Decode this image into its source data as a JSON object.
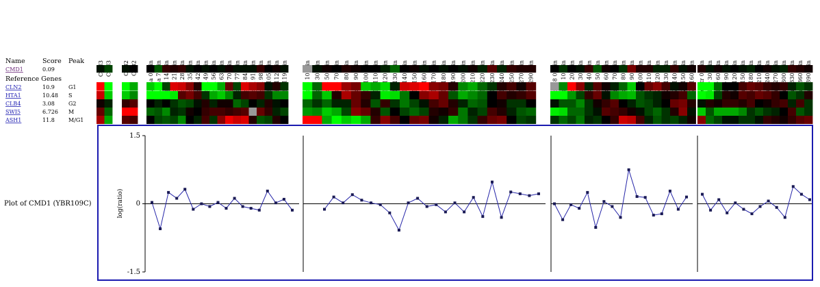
{
  "colors": {
    "up": "#ff0000",
    "down": "#00ff00",
    "missing": "#999999",
    "plot_border": "#1a1ab0",
    "series_line": "#2424a8",
    "marker": "#1a1a55",
    "query_link": "#6b2a7a",
    "ref_link": "#1a1ab0"
  },
  "table": {
    "headers": {
      "name": "Name",
      "score": "Score",
      "peak": "Peak"
    },
    "query": {
      "name": "CMD1",
      "score": "0.09",
      "peak": ""
    },
    "reference_label": "Reference Genes",
    "references": [
      {
        "name": "CLN2",
        "score": "10.9",
        "peak": "G1"
      },
      {
        "name": "HTA1",
        "score": "10.48",
        "peak": "S"
      },
      {
        "name": "CLB4",
        "score": "3.08",
        "peak": "G2"
      },
      {
        "name": "SWI5",
        "score": "6.726",
        "peak": "M"
      },
      {
        "name": "ASH1",
        "score": "11.8",
        "peak": "M/G1"
      }
    ]
  },
  "column_groups": [
    {
      "id": "cln3",
      "labels": [
        "CLN3",
        "CLN3"
      ]
    },
    {
      "id": "clb2",
      "labels": [
        "CLB2",
        "CLB2"
      ]
    },
    {
      "id": "alpha",
      "labels": [
        "Alpha 0 min",
        "Alpha 7 min",
        "Alpha 14 min",
        "Alpha 21 min",
        "Alpha 28 min",
        "Alpha 35 min",
        "Alpha 42 min",
        "Alpha 49 min",
        "Alpha 56 min",
        "Alpha 63 min",
        "Alpha 70 min",
        "Alpha 77 min",
        "Alpha 84 min",
        "Alpha 91 min",
        "Alpha 98 min",
        "Alpha 105 min",
        "Alpha 112 min",
        "Alpha 119 min"
      ]
    },
    {
      "id": "cdc15",
      "labels": [
        "cdc15 10 min",
        "cdc15 30 min",
        "cdc15 50 min",
        "cdc15 70 min",
        "cdc15 80 min",
        "cdc15 90 min",
        "cdc15 100 min",
        "cdc15 110 min",
        "cdc15 120 min",
        "cdc15 130 min",
        "cdc15 140 min",
        "cdc15 150 min",
        "cdc15 160 min",
        "cdc15 170 min",
        "cdc15 180 min",
        "cdc15 190 min",
        "cdc15 200 min",
        "cdc15 210 min",
        "cdc15 220 min",
        "cdc15 230 min",
        "cdc15 240 min",
        "cdc15 250 min",
        "cdc15 270 min",
        "cdc15 290 min"
      ]
    },
    {
      "id": "cdc28",
      "labels": [
        "cdc28 0 min",
        "cdc28 10 min",
        "cdc28 20 min",
        "cdc28 30 min",
        "cdc28 40 min",
        "cdc28 50 min",
        "cdc28 60 min",
        "cdc28 70 min",
        "cdc28 80 min",
        "cdc28 90 min",
        "cdc28 100 min",
        "cdc28 110 min",
        "cdc28 120 min",
        "cdc28 130 min",
        "cdc28 140 min",
        "cdc28 150 min",
        "cdc28 160 min"
      ]
    },
    {
      "id": "elutr",
      "labels": [
        "elutr 0 min",
        "elutr 30 min",
        "elutr 60 min",
        "elutr 90 min",
        "elutr 120 min",
        "elutr 150 min",
        "elutr 180 min",
        "elutr 210 min",
        "elutr 240 min",
        "elutr 270 min",
        "elutr 300 min",
        "elutr 330 min",
        "elutr 360 min",
        "elutr 390 min"
      ]
    }
  ],
  "chart_data": [
    {
      "type": "heatmap",
      "rows": [
        "CMD1",
        "CLN2",
        "HTA1",
        "CLB4",
        "SWI5",
        "ASH1"
      ],
      "scale": "log ratio; red = induced, green = repressed, black = 0, grey = missing",
      "groups": {
        "cln3": [
          [
            -0.1,
            -0.4
          ],
          [
            1.5,
            -1.5
          ],
          [
            1.2,
            -1.2
          ],
          [
            0.1,
            -0.2
          ],
          [
            0.6,
            -0.6
          ],
          [
            1.0,
            -1.0
          ]
        ],
        "clb2": [
          [
            -0.1,
            0.0
          ],
          [
            -1.5,
            -1.0
          ],
          [
            -1.2,
            -0.8
          ],
          [
            0.3,
            0.5
          ],
          [
            1.6,
            1.5
          ],
          [
            0.5,
            0.4
          ]
        ],
        "alpha": [
          [
            0.0,
            -0.5,
            0.3,
            0.2,
            0.3,
            -0.1,
            0.0,
            -0.1,
            0.0,
            -0.1,
            0.1,
            -0.1,
            -0.1,
            -0.1,
            0.3,
            0.0,
            0.1,
            -0.1
          ],
          [
            -1.2,
            -1.5,
            -0.4,
            1.3,
            1.2,
            0.8,
            0.2,
            -1.5,
            -1.5,
            -1.0,
            0.6,
            -0.4,
            1.3,
            1.0,
            0.8,
            -0.1,
            0.2,
            -0.3
          ],
          [
            -1.5,
            -1.5,
            -1.5,
            -1.4,
            0.5,
            0.7,
            0.4,
            -0.3,
            -1.0,
            -1.2,
            -0.8,
            -0.2,
            0.4,
            0.5,
            0.4,
            -0.3,
            -0.8,
            -0.8
          ],
          [
            0.0,
            -0.2,
            0.0,
            -0.3,
            -0.5,
            -0.4,
            -0.1,
            0.2,
            -0.2,
            0.1,
            0.1,
            -0.6,
            -0.4,
            0.0,
            -0.2,
            0.2,
            -0.1,
            0.0
          ],
          [
            -0.6,
            -0.5,
            -0.8,
            -0.2,
            -0.3,
            0.1,
            0.0,
            0.3,
            0.4,
            0.4,
            0.3,
            0.4,
            0.5,
            null,
            0.6,
            0.3,
            -0.2,
            -0.4
          ],
          [
            0.0,
            -0.4,
            -0.5,
            -0.4,
            -0.8,
            0.0,
            -0.2,
            0.4,
            -0.3,
            0.8,
            1.4,
            1.2,
            1.3,
            0.2,
            -0.5,
            -0.4,
            0.2,
            0.0
          ]
        ],
        "cdc15": [
          [
            null,
            -0.1,
            0.1,
            0.0,
            0.2,
            0.1,
            0.0,
            0.0,
            -0.2,
            -0.6,
            0.0,
            0.1,
            -0.1,
            0.0,
            -0.1,
            0.0,
            -0.1,
            0.1,
            -0.2,
            0.5,
            -0.2,
            0.3,
            0.2,
            0.2
          ],
          [
            -1.5,
            -0.6,
            1.5,
            1.5,
            0.9,
            0.7,
            -1.2,
            -1.0,
            -1.3,
            -0.2,
            1.2,
            1.3,
            1.5,
            0.8,
            0.7,
            0.2,
            -0.8,
            -1.0,
            -0.6,
            -0.3,
            0.2,
            0.4,
            0.1,
            0.5
          ],
          [
            -1.5,
            -0.6,
            -1.2,
            0.2,
            1.0,
            0.6,
            0.3,
            -0.2,
            -1.4,
            -1.3,
            -0.7,
            0.0,
            0.8,
            1.0,
            0.6,
            -0.5,
            -1.0,
            -0.8,
            -0.6,
            0.0,
            0.4,
            0.2,
            0.3,
            0.5
          ],
          [
            -0.6,
            -0.3,
            -0.6,
            -0.2,
            -0.2,
            0.6,
            0.2,
            -0.5,
            0.3,
            -0.3,
            -0.7,
            -0.4,
            -0.1,
            0.4,
            0.6,
            0.2,
            -0.2,
            -0.6,
            -0.5,
            0.0,
            0.1,
            -0.3,
            -0.3,
            0.0
          ],
          [
            -0.9,
            -0.8,
            -1.2,
            -1.0,
            -0.4,
            0.8,
            0.6,
            0.2,
            -0.5,
            0.0,
            -0.4,
            -0.6,
            -0.4,
            0.2,
            0.1,
            0.3,
            -0.7,
            -0.2,
            -0.4,
            0.4,
            0.2,
            -0.2,
            -0.5,
            -0.6
          ],
          [
            1.5,
            1.5,
            -1.0,
            -1.5,
            -1.2,
            -1.4,
            -1.0,
            0.3,
            0.8,
            0.4,
            0.0,
            0.6,
            0.7,
            0.1,
            -0.2,
            -1.0,
            -0.7,
            -0.3,
            0.3,
            0.6,
            0.7,
            0.0,
            -0.4,
            -0.3
          ]
        ],
        "cdc28": [
          [
            0.0,
            -0.3,
            0.0,
            -0.1,
            0.3,
            -0.5,
            0.1,
            0.0,
            -0.3,
            0.7,
            0.2,
            0.2,
            -0.2,
            -0.2,
            0.3,
            -0.1,
            0.1
          ],
          [
            null,
            -0.8,
            1.5,
            0.8,
            -0.2,
            0.5,
            0.1,
            -0.2,
            -0.6,
            -1.2,
            0.0,
            0.6,
            0.8,
            0.4,
            -0.1,
            0.1,
            0.5
          ],
          [
            -1.5,
            -1.5,
            -0.9,
            -0.4,
            0.3,
            0.6,
            -0.1,
            -0.8,
            -1.0,
            -1.1,
            -0.5,
            -0.3,
            -0.2,
            0.1,
            0.2,
            0.4,
            -0.6
          ],
          [
            -0.1,
            -0.5,
            -0.5,
            -0.8,
            -0.3,
            0.1,
            0.3,
            0.5,
            0.0,
            -0.2,
            -0.5,
            -0.4,
            -0.2,
            0.0,
            0.6,
            0.7,
            0.2
          ],
          [
            -1.4,
            -1.3,
            -0.6,
            -0.6,
            -0.3,
            -0.1,
            0.5,
            0.4,
            0.3,
            0.1,
            -0.1,
            -0.4,
            -0.6,
            -0.3,
            0.2,
            0.8,
            -0.1
          ],
          [
            -0.3,
            -0.6,
            -0.4,
            -0.7,
            -0.2,
            -0.3,
            0.0,
            0.3,
            1.2,
            1.1,
            0.4,
            -0.2,
            -0.5,
            -0.3,
            -0.4,
            -0.2,
            0.1
          ]
        ],
        "elutr": [
          [
            0.2,
            -0.1,
            0.1,
            -0.1,
            0.0,
            -0.1,
            -0.2,
            0.0,
            0.1,
            -0.1,
            -0.2,
            0.3,
            0.2,
            0.1
          ],
          [
            -1.5,
            -1.5,
            -0.6,
            0.0,
            0.0,
            0.4,
            0.6,
            0.5,
            0.3,
            0.2,
            0.3,
            -0.2,
            -0.5,
            -0.3
          ],
          [
            -1.5,
            -1.4,
            -0.4,
            0.2,
            0.1,
            0.5,
            0.4,
            0.6,
            0.5,
            0.3,
            0.0,
            -0.5,
            -0.3,
            0.2
          ],
          [
            -0.1,
            0.2,
            0.1,
            0.3,
            0.3,
            0.2,
            0.4,
            0.0,
            0.1,
            0.3,
            0.4,
            -0.2,
            0.4,
            -0.3
          ],
          [
            -1.2,
            -0.5,
            -1.0,
            -1.0,
            -1.0,
            -0.8,
            -0.3,
            -0.5,
            -0.3,
            -0.2,
            0.0,
            0.4,
            -0.5,
            -0.3
          ],
          [
            0.8,
            -0.6,
            -0.4,
            -0.1,
            -0.1,
            -0.3,
            -0.3,
            -0.1,
            0.3,
            0.2,
            0.1,
            0.3,
            0.5,
            0.6
          ]
        ]
      }
    },
    {
      "type": "line",
      "label": "Plot of CMD1 (YBR109C)",
      "ylabel": "log(ratio)",
      "ylim": [
        -1.5,
        1.5
      ],
      "ytick_labels": [
        "1.5",
        "0",
        "-1.5"
      ],
      "series": [
        {
          "group": "alpha",
          "values": [
            0.03,
            -0.55,
            0.25,
            0.12,
            0.32,
            -0.12,
            0.0,
            -0.06,
            0.03,
            -0.1,
            0.12,
            -0.06,
            -0.1,
            -0.14,
            0.28,
            0.02,
            0.1,
            -0.14
          ]
        },
        {
          "group": "cdc15",
          "values": [
            -0.12,
            0.15,
            0.02,
            0.2,
            0.08,
            0.02,
            -0.02,
            -0.2,
            -0.58,
            0.02,
            0.12,
            -0.06,
            -0.02,
            -0.18,
            0.02,
            -0.18,
            0.14,
            -0.28,
            0.48,
            -0.3,
            0.26,
            0.22,
            0.18,
            0.22
          ]
        },
        {
          "group": "cdc28",
          "values": [
            0.0,
            -0.35,
            -0.02,
            -0.1,
            0.25,
            -0.52,
            0.05,
            -0.06,
            -0.3,
            0.75,
            0.16,
            0.14,
            -0.25,
            -0.22,
            0.28,
            -0.12,
            0.15
          ]
        },
        {
          "group": "elutr",
          "values": [
            0.21,
            -0.14,
            0.09,
            -0.2,
            0.02,
            -0.12,
            -0.22,
            -0.06,
            0.06,
            -0.08,
            -0.3,
            0.38,
            0.21,
            0.09
          ]
        }
      ]
    }
  ]
}
